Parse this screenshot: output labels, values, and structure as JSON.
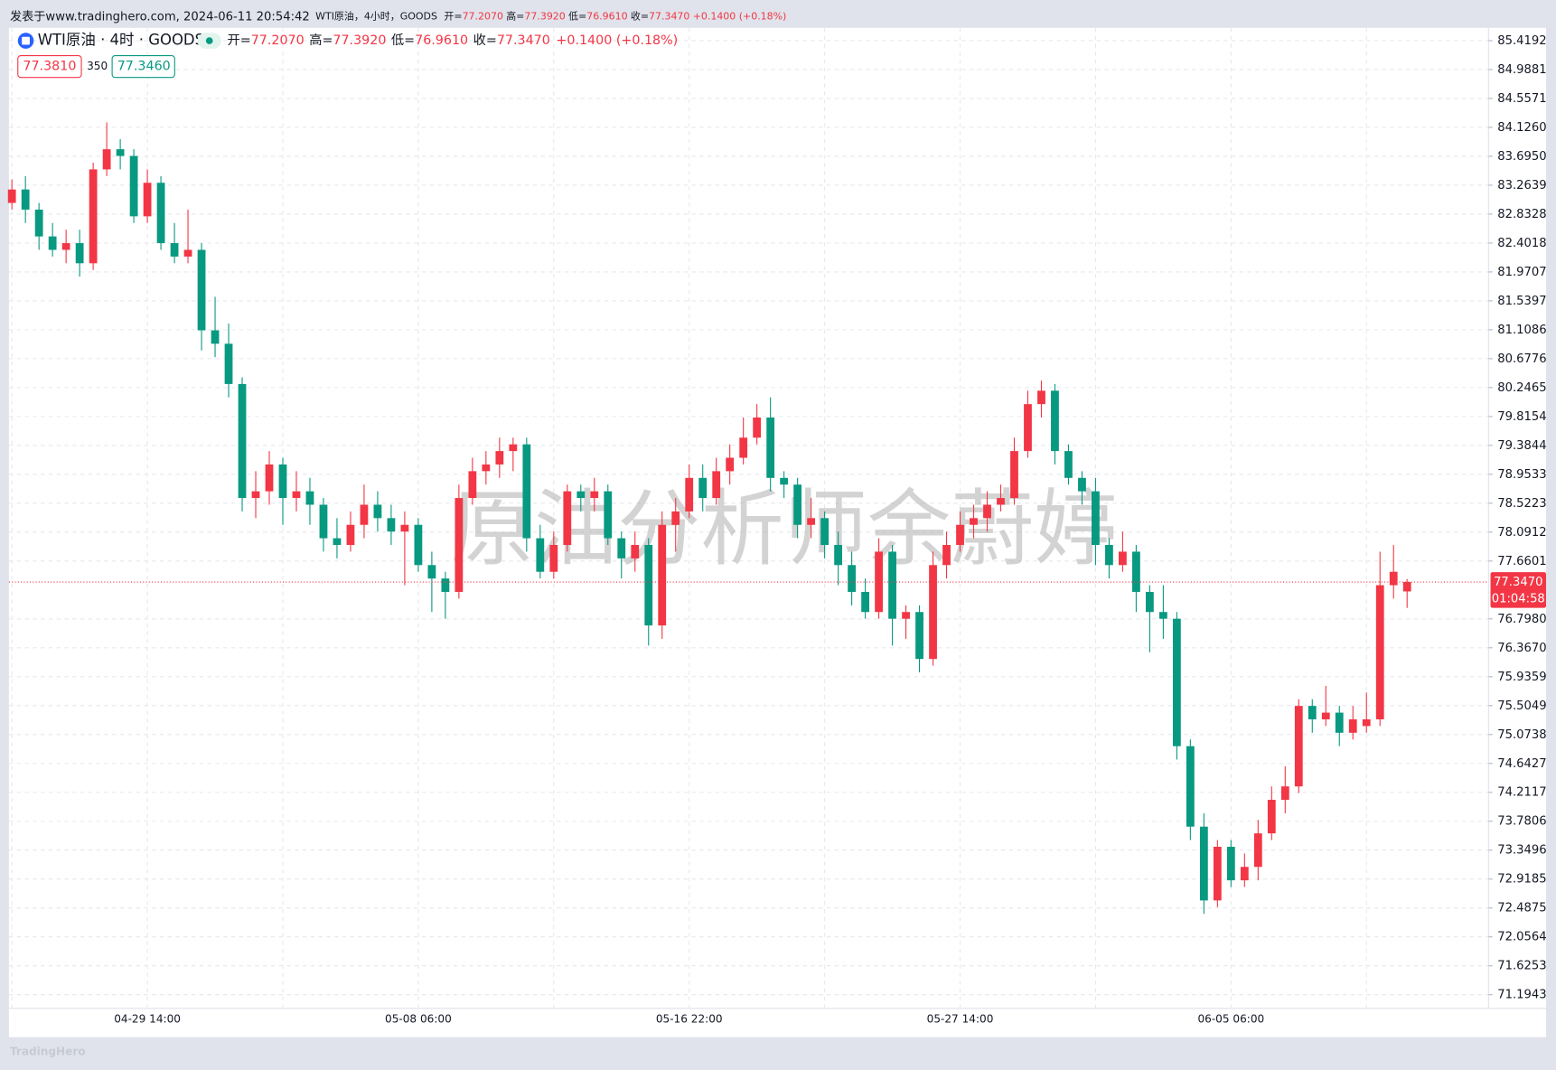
{
  "chart_data": {
    "type": "candlestick",
    "published": "发表于www.tradinghero.com, 2024-06-11 20:54:42",
    "top_symbol": "WTI原油，4小时，GOODS",
    "title": "WTI原油 · 4时 · GOODS",
    "legend_ohlc": [
      {
        "label": "开=",
        "value": "77.2070"
      },
      {
        "label": "高=",
        "value": "77.3920"
      },
      {
        "label": "低=",
        "value": "76.9610"
      },
      {
        "label": "收=",
        "value": "77.3470"
      }
    ],
    "change": "+0.1400 (+0.18%)",
    "bid": "77.3810",
    "spread": "350",
    "ask": "77.3460",
    "last_price": {
      "value": 77.347,
      "label": "77.3470"
    },
    "countdown": "01:04:58",
    "watermark": "原油分析师余蔚婷",
    "footer": "TradingHero",
    "up_color": "#f23645",
    "down_color": "#089981",
    "ylim": [
      70.99,
      85.61
    ],
    "yticks": [
      85.4192,
      84.9881,
      84.5571,
      {
        "value": 84.126,
        "label": "84.1260"
      },
      {
        "value": 83.695,
        "label": "83.6950"
      },
      83.2639,
      82.8328,
      82.4018,
      81.9707,
      81.5397,
      81.1086,
      80.6776,
      80.2465,
      79.8154,
      79.3844,
      78.9533,
      78.5223,
      78.0912,
      77.6601,
      {
        "value": 76.798,
        "label": "76.7980"
      },
      {
        "value": 76.367,
        "label": "76.3670"
      },
      75.9359,
      75.5049,
      75.0738,
      74.6427,
      74.2117,
      73.7806,
      73.3496,
      72.9185,
      72.4875,
      72.0564,
      71.6253,
      71.1943
    ],
    "grid": true,
    "categories": [
      null,
      null,
      null,
      null,
      null,
      null,
      null,
      null,
      null,
      null,
      "04-29 14:00",
      null,
      null,
      null,
      null,
      null,
      null,
      null,
      null,
      null,
      null,
      null,
      null,
      null,
      null,
      null,
      null,
      null,
      null,
      null,
      "05-08 06:00",
      null,
      null,
      null,
      null,
      null,
      null,
      null,
      null,
      null,
      null,
      null,
      null,
      null,
      null,
      null,
      null,
      null,
      null,
      null,
      "05-16 22:00",
      null,
      null,
      null,
      null,
      null,
      null,
      null,
      null,
      null,
      null,
      null,
      null,
      null,
      null,
      null,
      null,
      null,
      null,
      null,
      "05-27 14:00",
      null,
      null,
      null,
      null,
      null,
      null,
      null,
      null,
      null,
      null,
      null,
      null,
      null,
      null,
      null,
      null,
      null,
      null,
      null,
      "06-05 06:00",
      null,
      null,
      null,
      null,
      null,
      null,
      null,
      null,
      null,
      null,
      null,
      null,
      null
    ],
    "ohlc": [
      [
        83.0,
        83.35,
        82.9,
        83.2
      ],
      [
        83.2,
        83.4,
        82.7,
        82.9
      ],
      [
        82.9,
        83.0,
        82.3,
        82.5
      ],
      [
        82.5,
        82.7,
        82.2,
        82.3
      ],
      [
        82.3,
        82.6,
        82.1,
        82.4
      ],
      [
        82.4,
        82.6,
        81.9,
        82.1
      ],
      [
        82.1,
        83.6,
        82.0,
        83.5
      ],
      [
        83.5,
        84.2,
        83.4,
        83.8
      ],
      [
        83.8,
        83.95,
        83.5,
        83.7
      ],
      [
        83.7,
        83.8,
        82.7,
        82.8
      ],
      [
        82.8,
        83.5,
        82.7,
        83.3
      ],
      [
        83.3,
        83.4,
        82.3,
        82.4
      ],
      [
        82.4,
        82.7,
        82.1,
        82.2
      ],
      [
        82.2,
        82.9,
        82.1,
        82.3
      ],
      [
        82.3,
        82.4,
        80.8,
        81.1
      ],
      [
        81.1,
        81.6,
        80.7,
        80.9
      ],
      [
        80.9,
        81.2,
        80.1,
        80.3
      ],
      [
        80.3,
        80.4,
        78.4,
        78.6
      ],
      [
        78.6,
        79.0,
        78.3,
        78.7
      ],
      [
        78.7,
        79.3,
        78.5,
        79.1
      ],
      [
        79.1,
        79.2,
        78.2,
        78.6
      ],
      [
        78.6,
        79.0,
        78.4,
        78.7
      ],
      [
        78.7,
        78.9,
        78.2,
        78.5
      ],
      [
        78.5,
        78.6,
        77.8,
        78.0
      ],
      [
        78.0,
        78.3,
        77.7,
        77.9
      ],
      [
        77.9,
        78.4,
        77.8,
        78.2
      ],
      [
        78.2,
        78.8,
        78.0,
        78.5
      ],
      [
        78.5,
        78.7,
        78.1,
        78.3
      ],
      [
        78.3,
        78.5,
        77.9,
        78.1
      ],
      [
        78.1,
        78.4,
        77.3,
        78.2
      ],
      [
        78.2,
        78.3,
        77.5,
        77.6
      ],
      [
        77.6,
        77.8,
        76.9,
        77.4
      ],
      [
        77.4,
        77.5,
        76.8,
        77.2
      ],
      [
        77.2,
        78.8,
        77.1,
        78.6
      ],
      [
        78.6,
        79.2,
        78.5,
        79.0
      ],
      [
        79.0,
        79.3,
        78.8,
        79.1
      ],
      [
        79.1,
        79.5,
        78.9,
        79.3
      ],
      [
        79.3,
        79.5,
        79.0,
        79.4
      ],
      [
        79.4,
        79.5,
        77.8,
        78.0
      ],
      [
        78.0,
        78.2,
        77.4,
        77.5
      ],
      [
        77.5,
        78.1,
        77.4,
        77.9
      ],
      [
        77.9,
        78.8,
        77.8,
        78.7
      ],
      [
        78.7,
        78.8,
        78.4,
        78.6
      ],
      [
        78.6,
        78.9,
        78.4,
        78.7
      ],
      [
        78.7,
        78.8,
        77.9,
        78.0
      ],
      [
        78.0,
        78.1,
        77.4,
        77.7
      ],
      [
        77.7,
        78.1,
        77.5,
        77.9
      ],
      [
        77.9,
        78.0,
        76.4,
        76.7
      ],
      [
        76.7,
        78.4,
        76.5,
        78.2
      ],
      [
        78.2,
        78.6,
        77.8,
        78.4
      ],
      [
        78.4,
        79.1,
        78.3,
        78.9
      ],
      [
        78.9,
        79.1,
        78.4,
        78.6
      ],
      [
        78.6,
        79.2,
        78.5,
        79.0
      ],
      [
        79.0,
        79.4,
        78.8,
        79.2
      ],
      [
        79.2,
        79.8,
        79.1,
        79.5
      ],
      [
        79.5,
        80.0,
        79.4,
        79.8
      ],
      [
        79.8,
        80.1,
        78.7,
        78.9
      ],
      [
        78.9,
        79.0,
        78.6,
        78.8
      ],
      [
        78.8,
        78.9,
        78.0,
        78.2
      ],
      [
        78.2,
        78.6,
        78.0,
        78.3
      ],
      [
        78.3,
        78.4,
        77.7,
        77.9
      ],
      [
        77.9,
        78.1,
        77.3,
        77.6
      ],
      [
        77.6,
        77.8,
        77.0,
        77.2
      ],
      [
        77.2,
        77.4,
        76.8,
        76.9
      ],
      [
        76.9,
        78.0,
        76.8,
        77.8
      ],
      [
        77.8,
        77.9,
        76.4,
        76.8
      ],
      [
        76.8,
        77.0,
        76.5,
        76.9
      ],
      [
        76.9,
        77.0,
        76.0,
        76.2
      ],
      [
        76.2,
        77.8,
        76.1,
        77.6
      ],
      [
        77.6,
        78.1,
        77.4,
        77.9
      ],
      [
        77.9,
        78.4,
        77.8,
        78.2
      ],
      [
        78.2,
        78.5,
        78.0,
        78.3
      ],
      [
        78.3,
        78.7,
        78.1,
        78.5
      ],
      [
        78.5,
        78.8,
        78.4,
        78.6
      ],
      [
        78.6,
        79.5,
        78.5,
        79.3
      ],
      [
        79.3,
        80.2,
        79.2,
        80.0
      ],
      [
        80.0,
        80.35,
        79.8,
        80.2
      ],
      [
        80.2,
        80.3,
        79.1,
        79.3
      ],
      [
        79.3,
        79.4,
        78.8,
        78.9
      ],
      [
        78.9,
        79.0,
        78.5,
        78.7
      ],
      [
        78.7,
        78.9,
        77.6,
        77.9
      ],
      [
        77.9,
        78.0,
        77.4,
        77.6
      ],
      [
        77.6,
        78.1,
        77.5,
        77.8
      ],
      [
        77.8,
        77.9,
        76.9,
        77.2
      ],
      [
        77.2,
        77.3,
        76.3,
        76.9
      ],
      [
        76.9,
        77.3,
        76.5,
        76.8
      ],
      [
        76.8,
        76.9,
        74.7,
        74.9
      ],
      [
        74.9,
        75.0,
        73.5,
        73.7
      ],
      [
        73.7,
        73.9,
        72.4,
        72.6
      ],
      [
        72.6,
        73.5,
        72.5,
        73.4
      ],
      [
        73.4,
        73.5,
        72.8,
        72.9
      ],
      [
        72.9,
        73.3,
        72.8,
        73.1
      ],
      [
        73.1,
        73.8,
        72.9,
        73.6
      ],
      [
        73.6,
        74.3,
        73.5,
        74.1
      ],
      [
        74.1,
        74.6,
        73.9,
        74.3
      ],
      [
        74.3,
        75.6,
        74.2,
        75.5
      ],
      [
        75.5,
        75.6,
        75.1,
        75.3
      ],
      [
        75.3,
        75.8,
        75.2,
        75.4
      ],
      [
        75.4,
        75.5,
        74.9,
        75.1
      ],
      [
        75.1,
        75.5,
        75.0,
        75.3
      ],
      [
        75.2,
        75.7,
        75.1,
        75.3
      ],
      [
        75.3,
        77.8,
        75.2,
        77.3
      ],
      [
        77.3,
        77.9,
        77.1,
        77.5
      ],
      [
        77.207,
        77.392,
        76.961,
        77.347
      ]
    ]
  }
}
